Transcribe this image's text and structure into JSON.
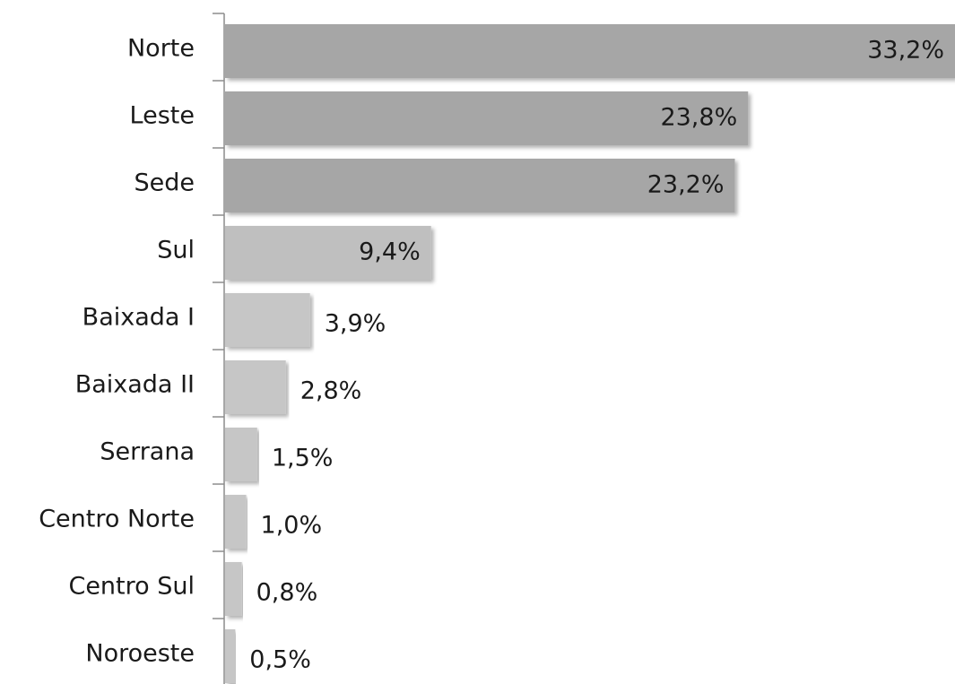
{
  "chart_data": {
    "type": "barh",
    "categories": [
      "Norte",
      "Leste",
      "Sede",
      "Sul",
      "Baixada I",
      "Baixada II",
      "Serrana",
      "Centro Norte",
      "Centro Sul",
      "Noroeste"
    ],
    "values": [
      33.2,
      23.8,
      23.2,
      9.4,
      3.9,
      2.8,
      1.5,
      1.0,
      0.8,
      0.5
    ],
    "value_labels": [
      "33,2%",
      "23,8%",
      "23,2%",
      "9,4%",
      "3,9%",
      "2,8%",
      "1,5%",
      "1,0%",
      "0,8%",
      "0,5%"
    ],
    "colors": [
      "#a6a6a6",
      "#a6a6a6",
      "#a6a6a6",
      "#bfbfbf",
      "#c6c6c6",
      "#c6c6c6",
      "#c6c6c6",
      "#c6c6c6",
      "#c6c6c6",
      "#c6c6c6"
    ]
  }
}
